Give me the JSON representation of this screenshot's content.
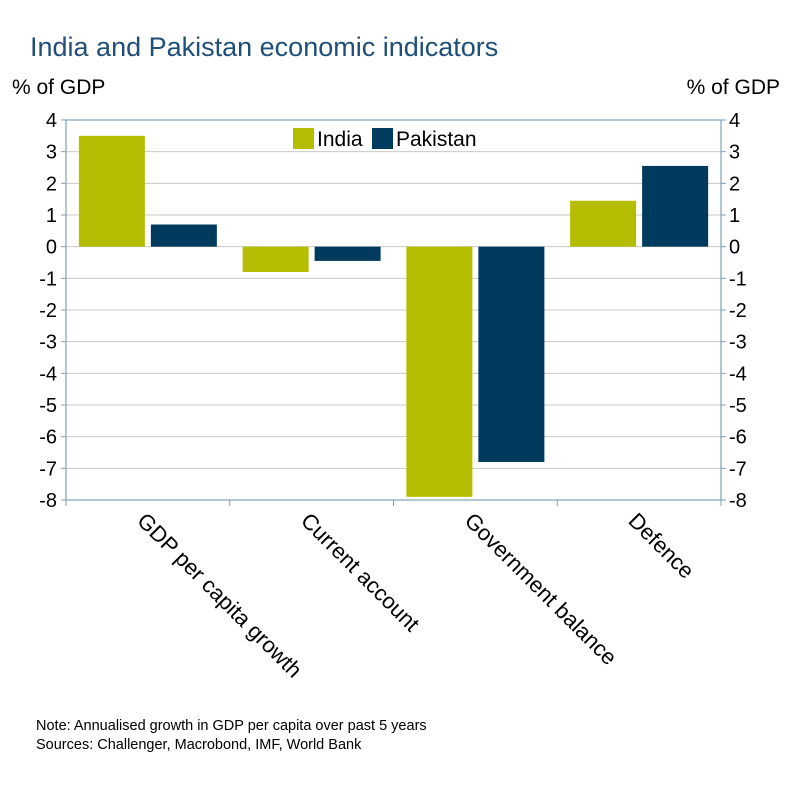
{
  "chart_data": {
    "type": "bar",
    "title": "India and Pakistan economic indicators",
    "ylabel_left": "% of GDP",
    "ylabel_right": "% of GDP",
    "categories": [
      "GDP per capita growth",
      "Current account",
      "Government balance",
      "Defence"
    ],
    "series": [
      {
        "name": "India",
        "color": "#b5bd00",
        "values": [
          3.5,
          -0.8,
          -7.9,
          1.45
        ]
      },
      {
        "name": "Pakistan",
        "color": "#003a5d",
        "values": [
          0.7,
          -0.45,
          -6.8,
          2.55
        ]
      }
    ],
    "ylim": [
      -8,
      4
    ],
    "yticks": [
      4,
      3,
      2,
      1,
      0,
      -1,
      -2,
      -3,
      -4,
      -5,
      -6,
      -7,
      -8
    ],
    "ytick_labels": [
      "4",
      "3",
      "2",
      "1",
      "0",
      "-1",
      "-2",
      "-3",
      "-4",
      "-5",
      "-6",
      "-7",
      "-8"
    ],
    "grid": true,
    "legend_position": "top-center"
  },
  "footnote": {
    "note": "Note: Annualised growth in GDP per capita over past 5 years",
    "sources": "Sources: Challenger, Macrobond, IMF, World Bank"
  }
}
